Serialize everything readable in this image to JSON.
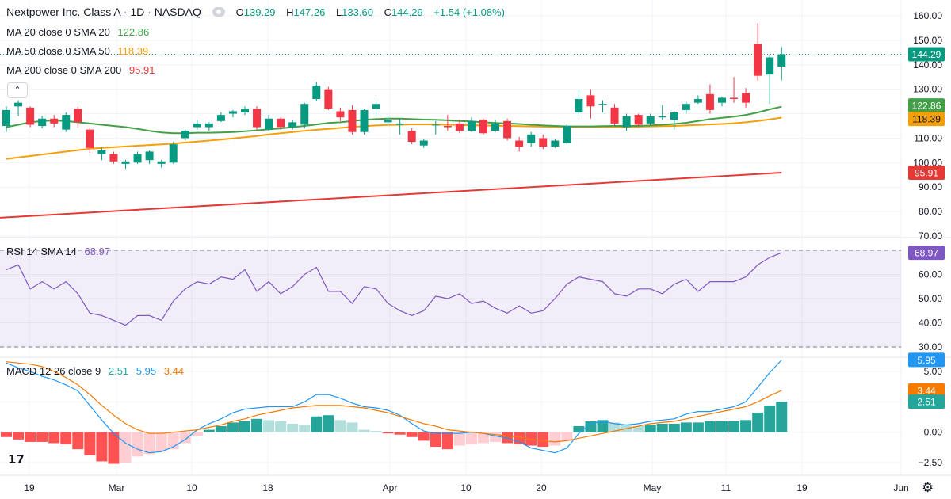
{
  "header": {
    "title": "Nextpower Inc. Class A · 1D · NASDAQ",
    "ohlc": {
      "o_label": "O",
      "o": "139.29",
      "h_label": "H",
      "h": "147.26",
      "l_label": "L",
      "l": "133.60",
      "c_label": "C",
      "c": "144.29",
      "change": "+1.54 (+1.08%)"
    }
  },
  "indicators": {
    "ma20": {
      "label": "MA 20 close 0 SMA 20",
      "value": "122.86",
      "color": "#43a047"
    },
    "ma50": {
      "label": "MA 50 close 0 SMA 50",
      "value": "118.39",
      "color": "#f59f0b"
    },
    "ma200": {
      "label": "MA 200 close 0 SMA 200",
      "value": "95.91",
      "color": "#e53935"
    },
    "rsi": {
      "label": "RSI 14 SMA 14",
      "value": "68.97",
      "color": "#7e57c2"
    },
    "macd": {
      "label": "MACD 12 26 close 9",
      "hist": "2.51",
      "macd": "5.95",
      "signal": "3.44",
      "hist_color": "#26a69a",
      "macd_color": "#2196f3",
      "signal_color": "#f57c00"
    }
  },
  "colors": {
    "up": "#089981",
    "down": "#f23645",
    "grid": "#f0f3fa",
    "axis_text": "#131722",
    "last_price": "#089981"
  },
  "chart_data": [
    {
      "type": "candlestick",
      "ylim": [
        70,
        160
      ],
      "y_ticks": [
        70,
        80,
        90,
        100,
        110,
        120,
        130,
        140,
        150,
        160
      ],
      "x_tick_labels": [
        "19",
        "Mar",
        "10",
        "18",
        "Apr",
        "10",
        "20",
        "May",
        "11",
        "19",
        "Jun"
      ],
      "last_price": "144.29",
      "candles": [
        {
          "o": 115.0,
          "h": 123.0,
          "l": 112.5,
          "c": 121.5
        },
        {
          "o": 123.0,
          "h": 125.5,
          "l": 119.0,
          "c": 124.5
        },
        {
          "o": 122.5,
          "h": 123.0,
          "l": 114.5,
          "c": 115.5
        },
        {
          "o": 115.0,
          "h": 119.0,
          "l": 114.0,
          "c": 118.0
        },
        {
          "o": 118.0,
          "h": 119.5,
          "l": 114.5,
          "c": 116.0
        },
        {
          "o": 113.5,
          "h": 120.5,
          "l": 112.5,
          "c": 119.5
        },
        {
          "o": 122.0,
          "h": 123.0,
          "l": 114.5,
          "c": 116.5
        },
        {
          "o": 113.5,
          "h": 114.5,
          "l": 104.0,
          "c": 106.0
        },
        {
          "o": 103.5,
          "h": 106.0,
          "l": 101.0,
          "c": 105.0
        },
        {
          "o": 103.5,
          "h": 104.5,
          "l": 99.5,
          "c": 100.5
        },
        {
          "o": 99.5,
          "h": 101.0,
          "l": 97.5,
          "c": 100.5
        },
        {
          "o": 100.0,
          "h": 104.5,
          "l": 99.5,
          "c": 103.5
        },
        {
          "o": 101.0,
          "h": 105.0,
          "l": 99.5,
          "c": 104.5
        },
        {
          "o": 99.5,
          "h": 101.0,
          "l": 98.0,
          "c": 100.5
        },
        {
          "o": 100.0,
          "h": 108.5,
          "l": 99.5,
          "c": 107.5
        },
        {
          "o": 110.0,
          "h": 113.5,
          "l": 109.0,
          "c": 113.0
        },
        {
          "o": 114.5,
          "h": 117.5,
          "l": 113.5,
          "c": 116.0
        },
        {
          "o": 114.5,
          "h": 116.5,
          "l": 113.0,
          "c": 116.0
        },
        {
          "o": 117.0,
          "h": 120.5,
          "l": 116.5,
          "c": 119.5
        },
        {
          "o": 120.0,
          "h": 121.5,
          "l": 118.5,
          "c": 121.0
        },
        {
          "o": 120.5,
          "h": 123.0,
          "l": 119.5,
          "c": 122.0
        },
        {
          "o": 122.0,
          "h": 123.0,
          "l": 113.5,
          "c": 114.5
        },
        {
          "o": 113.5,
          "h": 119.5,
          "l": 113.0,
          "c": 118.0
        },
        {
          "o": 118.0,
          "h": 118.5,
          "l": 113.5,
          "c": 114.5
        },
        {
          "o": 114.5,
          "h": 117.5,
          "l": 113.5,
          "c": 116.5
        },
        {
          "o": 115.5,
          "h": 124.5,
          "l": 114.0,
          "c": 124.0
        },
        {
          "o": 126.0,
          "h": 133.0,
          "l": 125.0,
          "c": 131.5
        },
        {
          "o": 130.0,
          "h": 131.0,
          "l": 121.5,
          "c": 122.0
        },
        {
          "o": 121.0,
          "h": 122.5,
          "l": 117.0,
          "c": 118.5
        },
        {
          "o": 121.5,
          "h": 123.5,
          "l": 111.5,
          "c": 112.5
        },
        {
          "o": 112.5,
          "h": 122.0,
          "l": 111.5,
          "c": 121.5
        },
        {
          "o": 122.0,
          "h": 125.5,
          "l": 119.0,
          "c": 124.0
        },
        {
          "o": 116.5,
          "h": 119.0,
          "l": 115.5,
          "c": 117.5
        },
        {
          "o": 115.5,
          "h": 118.0,
          "l": 111.5,
          "c": 116.0
        },
        {
          "o": 113.0,
          "h": 114.0,
          "l": 107.5,
          "c": 108.5
        },
        {
          "o": 107.0,
          "h": 109.5,
          "l": 106.0,
          "c": 109.0
        },
        {
          "o": 115.5,
          "h": 117.0,
          "l": 111.5,
          "c": 115.5
        },
        {
          "o": 115.0,
          "h": 119.5,
          "l": 113.0,
          "c": 114.5
        },
        {
          "o": 116.0,
          "h": 117.5,
          "l": 112.0,
          "c": 113.0
        },
        {
          "o": 113.0,
          "h": 118.5,
          "l": 112.5,
          "c": 117.0
        },
        {
          "o": 117.5,
          "h": 118.0,
          "l": 111.5,
          "c": 112.0
        },
        {
          "o": 113.0,
          "h": 117.5,
          "l": 112.5,
          "c": 116.0
        },
        {
          "o": 117.0,
          "h": 118.0,
          "l": 109.0,
          "c": 110.0
        },
        {
          "o": 109.0,
          "h": 110.5,
          "l": 104.5,
          "c": 106.5
        },
        {
          "o": 108.0,
          "h": 112.5,
          "l": 106.5,
          "c": 111.5
        },
        {
          "o": 110.0,
          "h": 111.5,
          "l": 105.5,
          "c": 106.5
        },
        {
          "o": 106.5,
          "h": 109.5,
          "l": 106.0,
          "c": 109.0
        },
        {
          "o": 108.0,
          "h": 115.5,
          "l": 107.5,
          "c": 115.0
        },
        {
          "o": 120.5,
          "h": 129.5,
          "l": 119.0,
          "c": 126.0
        },
        {
          "o": 127.5,
          "h": 130.0,
          "l": 118.0,
          "c": 123.0
        },
        {
          "o": 124.0,
          "h": 125.5,
          "l": 120.5,
          "c": 124.0
        },
        {
          "o": 122.5,
          "h": 124.0,
          "l": 115.0,
          "c": 116.0
        },
        {
          "o": 114.5,
          "h": 120.0,
          "l": 113.0,
          "c": 119.0
        },
        {
          "o": 119.5,
          "h": 120.0,
          "l": 114.5,
          "c": 115.5
        },
        {
          "o": 116.0,
          "h": 120.0,
          "l": 115.0,
          "c": 119.0
        },
        {
          "o": 118.5,
          "h": 123.5,
          "l": 117.5,
          "c": 119.0
        },
        {
          "o": 117.5,
          "h": 121.0,
          "l": 113.5,
          "c": 120.5
        },
        {
          "o": 121.5,
          "h": 125.0,
          "l": 120.0,
          "c": 124.0
        },
        {
          "o": 124.5,
          "h": 127.5,
          "l": 124.0,
          "c": 126.0
        },
        {
          "o": 128.0,
          "h": 132.0,
          "l": 120.0,
          "c": 121.5
        },
        {
          "o": 124.5,
          "h": 127.0,
          "l": 123.0,
          "c": 126.5
        },
        {
          "o": 126.5,
          "h": 135.0,
          "l": 124.5,
          "c": 126.0
        },
        {
          "o": 128.5,
          "h": 130.5,
          "l": 122.5,
          "c": 124.5
        },
        {
          "o": 148.5,
          "h": 157.0,
          "l": 133.5,
          "c": 135.5
        },
        {
          "o": 136.0,
          "h": 144.0,
          "l": 124.0,
          "c": 143.0
        },
        {
          "o": 139.29,
          "h": 147.26,
          "l": 133.6,
          "c": 144.29
        }
      ],
      "ma20": [
        114.5,
        115.5,
        116.5,
        117.0,
        117.2,
        117.0,
        116.5,
        116.0,
        115.5,
        115.0,
        114.5,
        113.8,
        113.0,
        112.3,
        112.0,
        112.0,
        112.2,
        112.2,
        112.3,
        112.5,
        112.8,
        113.2,
        113.6,
        114.0,
        114.5,
        115.0,
        115.6,
        116.2,
        116.5,
        117.0,
        117.5,
        117.8,
        118.0,
        118.0,
        117.8,
        117.6,
        117.5,
        117.3,
        117.0,
        116.8,
        116.5,
        116.2,
        116.0,
        115.8,
        115.5,
        115.2,
        115.0,
        114.8,
        114.8,
        114.8,
        114.9,
        115.0,
        115.0,
        115.0,
        115.2,
        115.5,
        115.8,
        116.3,
        117.0,
        117.8,
        118.3,
        118.8,
        119.5,
        120.5,
        121.8,
        122.86
      ],
      "ma50": [
        101.5,
        102.1,
        102.7,
        103.3,
        103.9,
        104.5,
        105.1,
        105.7,
        106.0,
        106.3,
        106.6,
        106.9,
        107.2,
        107.5,
        107.8,
        108.2,
        108.6,
        109.0,
        109.4,
        109.9,
        110.4,
        110.9,
        111.5,
        112.0,
        112.5,
        113.0,
        113.4,
        113.8,
        114.2,
        114.6,
        114.9,
        115.2,
        115.4,
        115.5,
        115.6,
        115.6,
        115.6,
        115.5,
        115.4,
        115.3,
        115.2,
        115.1,
        115.0,
        114.9,
        114.8,
        114.7,
        114.6,
        114.6,
        114.6,
        114.6,
        114.6,
        114.6,
        114.6,
        114.7,
        114.8,
        114.9,
        115.0,
        115.2,
        115.4,
        115.6,
        115.8,
        116.1,
        116.5,
        117.0,
        117.7,
        118.39
      ]
    },
    {
      "type": "line",
      "name": "RSI 14",
      "ylim": [
        30,
        70
      ],
      "y_ticks": [
        30,
        40,
        50,
        60
      ],
      "upper_band": 70,
      "lower_band": 30,
      "values": [
        62,
        64,
        54,
        57,
        54,
        57,
        52,
        44,
        43,
        41,
        39,
        43,
        43,
        41,
        49,
        54,
        57,
        56,
        59,
        58,
        62,
        53,
        57,
        52,
        55,
        60,
        63,
        53,
        53,
        48,
        55,
        54,
        48,
        45,
        43,
        45,
        51,
        50,
        52,
        48,
        49,
        46,
        44,
        47,
        44,
        45,
        50,
        56,
        59,
        58,
        57,
        52,
        51,
        54,
        54,
        52,
        56,
        58,
        53,
        57,
        57,
        57,
        59,
        64,
        67,
        68.97
      ]
    },
    {
      "type": "bar+line",
      "name": "MACD",
      "ylim": [
        -2.5,
        5.0
      ],
      "y_ticks": [
        -2.5,
        0.0,
        2.5,
        5.0
      ],
      "histogram": [
        -0.4,
        -0.6,
        -0.8,
        -0.8,
        -0.9,
        -1.0,
        -1.4,
        -1.9,
        -2.4,
        -2.6,
        -2.5,
        -2.0,
        -1.8,
        -1.6,
        -1.4,
        -0.9,
        -0.3,
        0.2,
        0.5,
        0.8,
        0.9,
        1.1,
        1.0,
        0.9,
        0.7,
        0.6,
        1.3,
        1.4,
        1.0,
        0.8,
        0.2,
        0.1,
        -0.1,
        -0.2,
        -0.4,
        -0.7,
        -1.2,
        -1.4,
        -1.1,
        -1.0,
        -0.9,
        -0.8,
        -0.9,
        -1.0,
        -1.1,
        -1.2,
        -1.1,
        -0.7,
        0.5,
        0.9,
        1.0,
        0.8,
        0.6,
        0.5,
        0.6,
        0.7,
        0.7,
        0.8,
        0.8,
        0.9,
        0.9,
        0.9,
        1.0,
        1.6,
        2.2,
        2.51
      ],
      "macd": [
        5.7,
        5.3,
        5.0,
        4.6,
        4.3,
        3.9,
        3.4,
        2.2,
        1.0,
        -0.1,
        -0.9,
        -1.4,
        -1.7,
        -1.6,
        -1.2,
        -0.6,
        0.2,
        0.7,
        1.1,
        1.6,
        1.9,
        2.0,
        2.1,
        2.1,
        2.1,
        2.5,
        3.1,
        3.1,
        2.8,
        2.4,
        2.1,
        2.0,
        1.8,
        1.4,
        0.7,
        0.1,
        -0.1,
        -0.1,
        -0.1,
        0.0,
        -0.1,
        -0.3,
        -0.5,
        -0.8,
        -1.3,
        -1.5,
        -1.7,
        -1.3,
        -0.1,
        0.7,
        0.9,
        0.7,
        0.6,
        0.7,
        0.9,
        1.0,
        1.1,
        1.5,
        1.7,
        1.7,
        1.9,
        2.1,
        2.5,
        3.7,
        4.9,
        5.95
      ],
      "signal": [
        5.8,
        5.7,
        5.6,
        5.4,
        5.0,
        4.5,
        3.9,
        3.1,
        2.2,
        1.4,
        0.7,
        0.2,
        -0.1,
        -0.1,
        0.0,
        0.1,
        0.2,
        0.4,
        0.6,
        0.9,
        1.1,
        1.4,
        1.6,
        1.8,
        2.0,
        2.1,
        2.2,
        2.2,
        2.2,
        2.1,
        2.0,
        1.8,
        1.6,
        1.3,
        1.0,
        0.7,
        0.5,
        0.2,
        0.1,
        0.0,
        -0.1,
        -0.2,
        -0.3,
        -0.4,
        -0.6,
        -0.7,
        -0.8,
        -0.7,
        -0.5,
        -0.3,
        -0.1,
        0.1,
        0.3,
        0.5,
        0.7,
        0.8,
        0.9,
        1.1,
        1.3,
        1.5,
        1.7,
        1.9,
        2.1,
        2.5,
        3.0,
        3.44
      ]
    }
  ]
}
